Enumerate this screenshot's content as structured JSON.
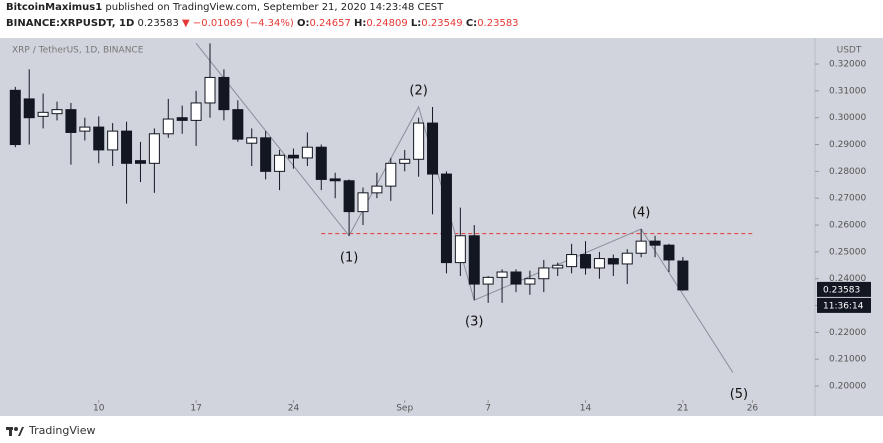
{
  "header": {
    "author": "BitcoinMaximus1",
    "published": "published on TradingView.com, September 21, 2020 14:23:48 CEST",
    "symbol": "BINANCE:XRPUSDT, 1D",
    "last": "0.23583",
    "change": "▼ −0.01069 (−4.34%)",
    "open_key": "O:",
    "open": "0.24657",
    "high_key": "H:",
    "high": "0.24809",
    "low_key": "L:",
    "low": "0.23549",
    "close_key": "C:",
    "close": "0.23583"
  },
  "footer": {
    "brand": "TradingView"
  },
  "chart_data": {
    "type": "candlestick",
    "title": "XRP / TetherUS, 1D, BINANCE",
    "y_unit": "USDT",
    "up_color": "#ffffff",
    "down_color": "#131722",
    "x": [
      4,
      5,
      6,
      7,
      8,
      9,
      10,
      11,
      12,
      13,
      14,
      15,
      16,
      17,
      18,
      19,
      20,
      21,
      22,
      23,
      24,
      25,
      26,
      27,
      28,
      29,
      30,
      31,
      32,
      33,
      34,
      35,
      36,
      37,
      38,
      39,
      40,
      41,
      42,
      43,
      44,
      45,
      46,
      47,
      48,
      49,
      50,
      51,
      52
    ],
    "open": [
      0.3102,
      0.307,
      0.3005,
      0.3015,
      0.303,
      0.295,
      0.2965,
      0.288,
      0.295,
      0.284,
      0.283,
      0.294,
      0.3,
      0.299,
      0.3055,
      0.315,
      0.303,
      0.2905,
      0.2925,
      0.28,
      0.286,
      0.285,
      0.289,
      0.2772,
      0.2765,
      0.265,
      0.272,
      0.2745,
      0.283,
      0.2845,
      0.298,
      0.279,
      0.246,
      0.256,
      0.238,
      0.2405,
      0.2425,
      0.238,
      0.24,
      0.244,
      0.2445,
      0.249,
      0.244,
      0.2475,
      0.2455,
      0.2495,
      0.254,
      0.2525,
      0.24657
    ],
    "high": [
      0.3115,
      0.318,
      0.309,
      0.306,
      0.3055,
      0.3,
      0.3005,
      0.298,
      0.2985,
      0.291,
      0.296,
      0.307,
      0.3045,
      0.31,
      0.3277,
      0.318,
      0.3065,
      0.296,
      0.295,
      0.288,
      0.2885,
      0.2945,
      0.29,
      0.2795,
      0.277,
      0.274,
      0.2795,
      0.285,
      0.288,
      0.3,
      0.304,
      0.28,
      0.2665,
      0.26,
      0.241,
      0.2435,
      0.2435,
      0.243,
      0.247,
      0.246,
      0.253,
      0.254,
      0.25,
      0.249,
      0.251,
      0.2585,
      0.256,
      0.253,
      0.24809
    ],
    "low": [
      0.289,
      0.29,
      0.296,
      0.299,
      0.2825,
      0.2915,
      0.283,
      0.282,
      0.268,
      0.276,
      0.272,
      0.2925,
      0.294,
      0.2895,
      0.3,
      0.299,
      0.291,
      0.282,
      0.277,
      0.273,
      0.281,
      0.282,
      0.273,
      0.27,
      0.256,
      0.26,
      0.27,
      0.269,
      0.28,
      0.278,
      0.264,
      0.242,
      0.241,
      0.232,
      0.231,
      0.231,
      0.235,
      0.234,
      0.235,
      0.241,
      0.242,
      0.2415,
      0.24,
      0.241,
      0.238,
      0.248,
      0.248,
      0.2425,
      0.23549
    ],
    "close": [
      0.29,
      0.3,
      0.302,
      0.303,
      0.2945,
      0.2965,
      0.288,
      0.295,
      0.283,
      0.283,
      0.294,
      0.2995,
      0.299,
      0.3055,
      0.315,
      0.303,
      0.292,
      0.2925,
      0.28,
      0.286,
      0.285,
      0.289,
      0.277,
      0.2765,
      0.265,
      0.272,
      0.2745,
      0.283,
      0.2845,
      0.298,
      0.279,
      0.246,
      0.256,
      0.238,
      0.2405,
      0.2425,
      0.238,
      0.24,
      0.244,
      0.245,
      0.249,
      0.244,
      0.2475,
      0.2455,
      0.2495,
      0.254,
      0.2525,
      0.247,
      0.23583
    ],
    "xlim": [
      2.9,
      61.5
    ],
    "ylim": [
      0.1948,
      0.3297
    ],
    "xticks": [
      10,
      17,
      24,
      {
        "value": 32,
        "label": "Sep"
      },
      {
        "value": 38,
        "label": "7"
      },
      {
        "value": 45,
        "label": "14"
      },
      {
        "value": 52,
        "label": "21"
      },
      {
        "value": 57,
        "label": "26"
      }
    ],
    "yticks": [
      {
        "value": 0.2,
        "label": "0.20000"
      },
      {
        "value": 0.21,
        "label": "0.21000"
      },
      {
        "value": 0.22,
        "label": "0.22000"
      },
      {
        "value": 0.23,
        "label": "0.23000"
      },
      {
        "value": 0.24,
        "label": "0.24000"
      },
      {
        "value": 0.25,
        "label": "0.25000"
      },
      {
        "value": 0.26,
        "label": "0.26000"
      },
      {
        "value": 0.27,
        "label": "0.27000"
      },
      {
        "value": 0.28,
        "label": "0.28000"
      },
      {
        "value": 0.29,
        "label": "0.29000"
      },
      {
        "value": 0.3,
        "label": "0.30000"
      },
      {
        "value": 0.31,
        "label": "0.31000"
      },
      {
        "value": 0.32,
        "label": "0.32000"
      }
    ],
    "last_price": 0.23583,
    "countdown": "11:36:14",
    "resistance": {
      "value": 0.2568,
      "x": [
        26,
        57
      ],
      "color": "#e53935"
    },
    "wave_path": {
      "x": [
        17,
        28,
        33,
        37,
        49,
        55.6
      ],
      "y": [
        0.3277,
        0.256,
        0.304,
        0.232,
        0.2585,
        0.205
      ],
      "color": "#8a8e98"
    },
    "annotations": [
      "(1)",
      "(2)",
      "(3)",
      "(4)",
      "(5)"
    ]
  }
}
